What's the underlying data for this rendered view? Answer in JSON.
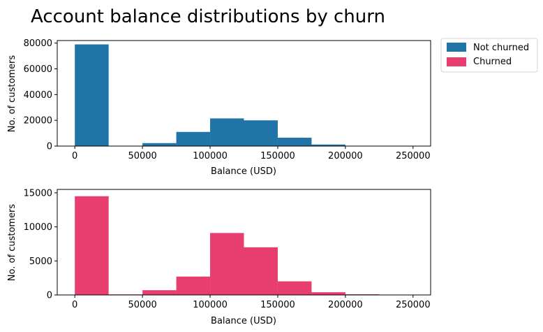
{
  "chart_data": {
    "title": "Account balance distributions by churn",
    "legend": {
      "placement": "outside-top-right",
      "entries": [
        {
          "label": "Not churned",
          "color": "#2174a8"
        },
        {
          "label": "Churned",
          "color": "#e83e6f"
        }
      ]
    },
    "charts": [
      {
        "type": "bar",
        "subtype": "histogram",
        "series_name": "Not churned",
        "color": "#2174a8",
        "bin_edges": [
          0,
          25000,
          50000,
          75000,
          100000,
          125000,
          150000,
          175000,
          200000,
          225000,
          250000
        ],
        "values": [
          79000,
          0,
          2300,
          11000,
          21500,
          20000,
          6500,
          1200,
          100,
          0
        ],
        "xlabel": "Balance (USD)",
        "ylabel": "No. of customers",
        "xlim": [
          -13000,
          263000
        ],
        "ylim": [
          0,
          82000
        ],
        "xticks": [
          0,
          50000,
          100000,
          150000,
          200000,
          250000
        ],
        "yticks": [
          0,
          20000,
          40000,
          60000,
          80000
        ],
        "grid": false
      },
      {
        "type": "bar",
        "subtype": "histogram",
        "series_name": "Churned",
        "color": "#e83e6f",
        "bin_edges": [
          0,
          25000,
          50000,
          75000,
          100000,
          125000,
          150000,
          175000,
          200000,
          225000,
          250000
        ],
        "values": [
          14500,
          80,
          700,
          2700,
          9100,
          7000,
          2000,
          400,
          100,
          0
        ],
        "xlabel": "Balance (USD)",
        "ylabel": "No. of customers",
        "xlim": [
          -13000,
          263000
        ],
        "ylim": [
          0,
          15500
        ],
        "xticks": [
          0,
          50000,
          100000,
          150000,
          200000,
          250000
        ],
        "yticks": [
          0,
          5000,
          10000,
          15000
        ],
        "grid": false
      }
    ]
  }
}
